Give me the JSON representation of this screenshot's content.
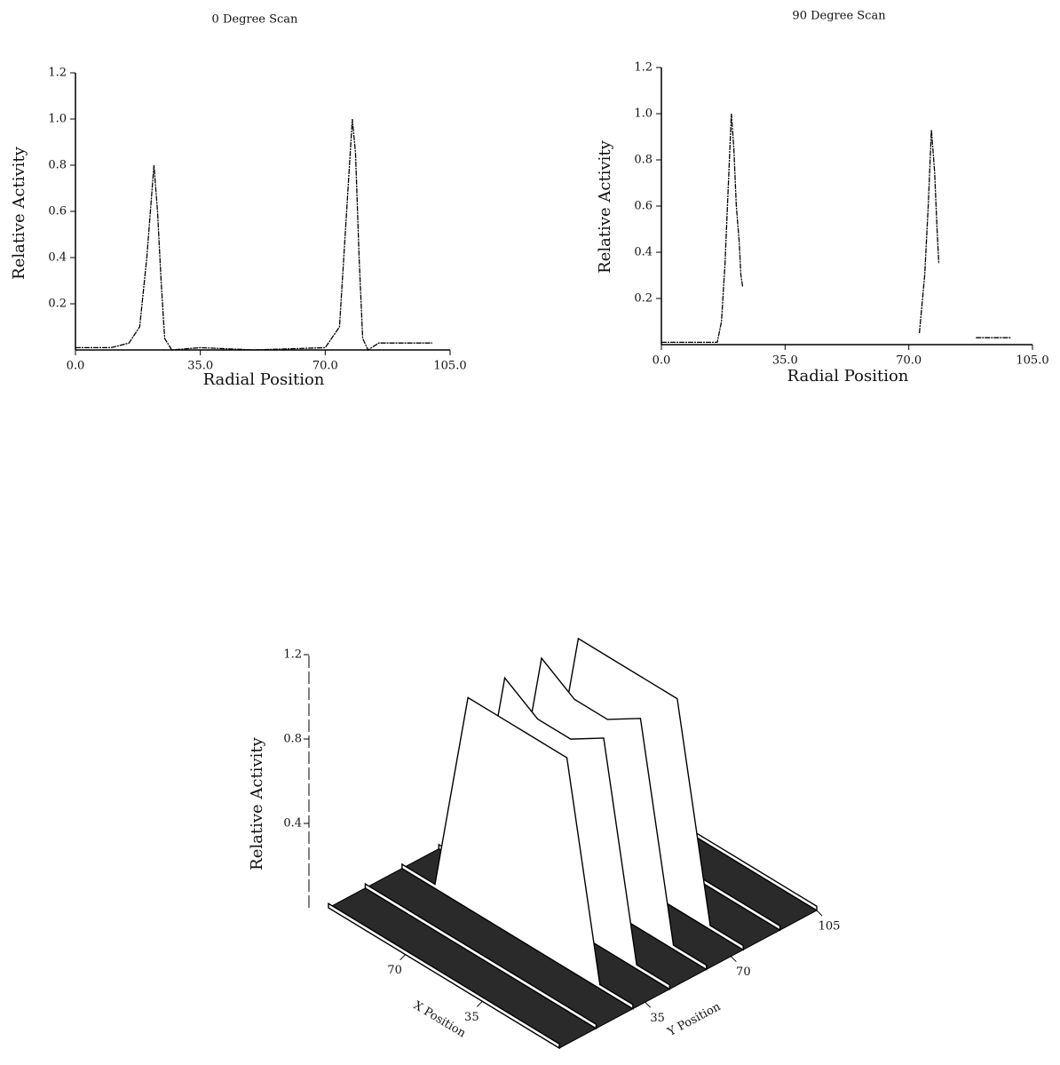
{
  "chart_data": [
    {
      "type": "line",
      "title": "0 Degree Scan",
      "xlabel": "Radial Position",
      "ylabel": "Relative Activity",
      "color": "#000000",
      "x": [
        0,
        10,
        15,
        18,
        20,
        22,
        23,
        24,
        25,
        27,
        35,
        50,
        70,
        74,
        76,
        77.6,
        78.5,
        79.5,
        80.5,
        82,
        85,
        100
      ],
      "values": [
        0.01,
        0.01,
        0.03,
        0.1,
        0.4,
        0.8,
        0.6,
        0.3,
        0.05,
        0,
        0.01,
        0,
        0.01,
        0.1,
        0.6,
        1.0,
        0.85,
        0.4,
        0.05,
        0,
        0.03,
        0.03
      ],
      "xlim": [
        0,
        105
      ],
      "xticks": [
        {
          "value": 0,
          "label": "0.0"
        },
        {
          "value": 35,
          "label": "35.0"
        },
        {
          "value": 70,
          "label": "70.0"
        },
        {
          "value": 105,
          "label": "105.0"
        }
      ],
      "ylim": [
        0,
        1.2
      ],
      "yticks": [
        0.2,
        0.4,
        0.6,
        0.8,
        {
          "value": 1,
          "label": "1.0"
        },
        1.2
      ]
    },
    {
      "type": "line",
      "title": "90 Degree Scan",
      "xlabel": "Radial Position",
      "ylabel": "Relative Activity",
      "color": "#000000",
      "x": [
        0,
        15.8,
        17,
        18,
        19.8,
        20.5,
        21.2,
        22,
        22.5,
        23,
        50,
        73,
        74.5,
        75.5,
        76.4,
        77.3,
        78,
        78.5,
        85,
        89,
        99
      ],
      "values": [
        0.01,
        0.01,
        0.1,
        0.35,
        1.0,
        0.85,
        0.6,
        0.45,
        0.3,
        0.25,
        null,
        0.05,
        0.3,
        0.6,
        0.93,
        0.75,
        0.5,
        0.35,
        null,
        0.03,
        0.03
      ],
      "xlim": [
        0,
        105
      ],
      "xticks": [
        {
          "value": 0,
          "label": "0.0"
        },
        {
          "value": 35,
          "label": "35.0"
        },
        {
          "value": 70,
          "label": "70.0"
        },
        {
          "value": 105,
          "label": "105.0"
        }
      ],
      "ylim": [
        0,
        1.2
      ],
      "yticks": [
        0.2,
        0.4,
        0.6,
        0.8,
        {
          "value": 1,
          "label": "1.0"
        },
        1.2
      ]
    },
    {
      "type": "surface",
      "xlabel": "X Position",
      "ylabel": "Y Position",
      "zlabel": "Relative Activity",
      "x": [
        0,
        15,
        30,
        45,
        60,
        75,
        90,
        105
      ],
      "y": [
        0,
        15,
        30,
        45,
        60,
        75,
        90,
        105
      ],
      "z": [
        [
          0.02,
          0.02,
          0.02,
          0.02,
          0.02,
          0.02,
          0.02,
          0.02
        ],
        [
          0.02,
          0.02,
          0.02,
          0.02,
          0.02,
          0.02,
          0.02,
          0.02
        ],
        [
          0.02,
          0.02,
          1.0,
          1.0,
          1.0,
          1.0,
          0.02,
          0.02
        ],
        [
          0.02,
          0.02,
          1.0,
          0.9,
          0.9,
          1.0,
          0.02,
          0.02
        ],
        [
          0.02,
          0.02,
          1.0,
          0.9,
          0.9,
          1.0,
          0.02,
          0.02
        ],
        [
          0.02,
          0.02,
          1.0,
          1.0,
          1.0,
          1.0,
          0.02,
          0.02
        ],
        [
          0.02,
          0.02,
          0.02,
          0.02,
          0.02,
          0.02,
          0.02,
          0.02
        ],
        [
          0.02,
          0.02,
          0.02,
          0.02,
          0.02,
          0.02,
          0.02,
          0.02
        ]
      ],
      "xlim": [
        0,
        105
      ],
      "xticks": [
        35,
        70
      ],
      "ylim": [
        0,
        105
      ],
      "yticks": [
        35,
        70,
        105
      ],
      "zlim": [
        0,
        1.2
      ],
      "zticks": [
        0.4,
        0.8,
        1.2
      ]
    }
  ]
}
